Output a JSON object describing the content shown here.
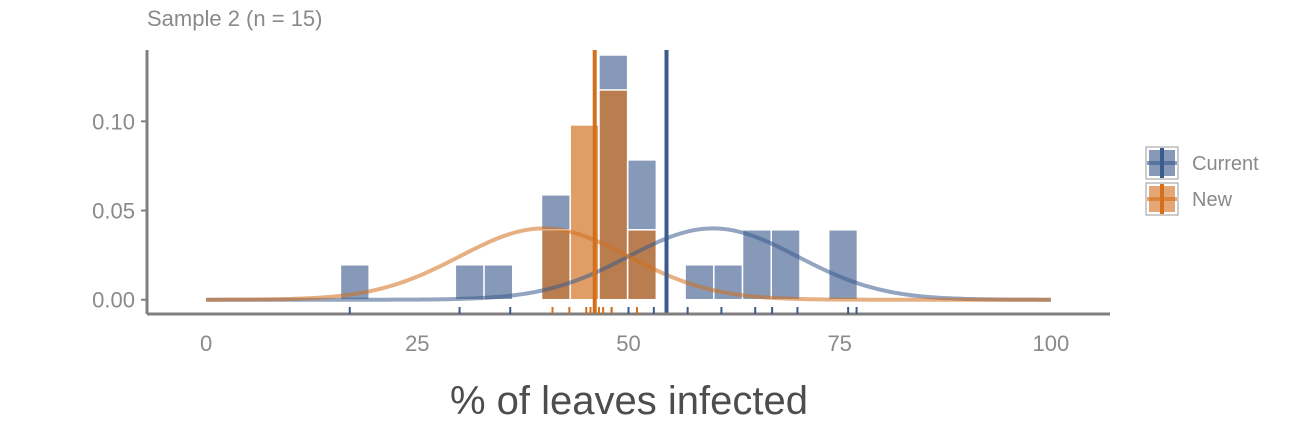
{
  "chart_data": {
    "type": "bar",
    "subtitle": "Sample 2 (n = 15)",
    "xlabel": "% of leaves infected",
    "ylabel": "",
    "xlim": [
      -7,
      107
    ],
    "ylim": [
      -0.008,
      0.14
    ],
    "x_ticks": [
      0,
      25,
      50,
      75,
      100
    ],
    "x_tick_labels": [
      "0",
      "25",
      "50",
      "75",
      "100"
    ],
    "y_ticks": [
      0.0,
      0.05,
      0.1
    ],
    "y_tick_labels": [
      "0.00",
      "0.05",
      "0.10"
    ],
    "bin_width": 3.4,
    "legend": {
      "position": "right",
      "entries": [
        "Current",
        "New"
      ]
    },
    "colors": {
      "Current": "#3b5b8c",
      "New": "#d2701e",
      "axis": "#7f7f7f"
    },
    "series": [
      {
        "name": "Current",
        "histogram": [
          {
            "x0": 15.9,
            "density": 0.0196
          },
          {
            "x0": 29.5,
            "density": 0.0196
          },
          {
            "x0": 32.9,
            "density": 0.0196
          },
          {
            "x0": 39.7,
            "density": 0.0588
          },
          {
            "x0": 46.5,
            "density": 0.1372
          },
          {
            "x0": 49.9,
            "density": 0.0784
          },
          {
            "x0": 56.7,
            "density": 0.0196
          },
          {
            "x0": 60.1,
            "density": 0.0196
          },
          {
            "x0": 63.5,
            "density": 0.0392
          },
          {
            "x0": 66.9,
            "density": 0.0392
          },
          {
            "x0": 73.7,
            "density": 0.0392
          }
        ],
        "mean": 54.5,
        "normal_curve": {
          "mean": 60,
          "sd": 10
        },
        "rug": [
          17,
          30,
          36,
          48,
          50,
          53,
          57,
          61,
          65,
          67,
          70,
          76,
          77
        ]
      },
      {
        "name": "New",
        "histogram": [
          {
            "x0": 39.7,
            "density": 0.0392
          },
          {
            "x0": 43.1,
            "density": 0.098
          },
          {
            "x0": 46.5,
            "density": 0.1176
          },
          {
            "x0": 49.9,
            "density": 0.0392
          }
        ],
        "mean": 46,
        "normal_curve": {
          "mean": 40,
          "sd": 10
        },
        "rug": [
          41,
          43,
          45,
          45.5,
          46,
          46.5,
          47,
          48,
          51
        ]
      }
    ]
  }
}
